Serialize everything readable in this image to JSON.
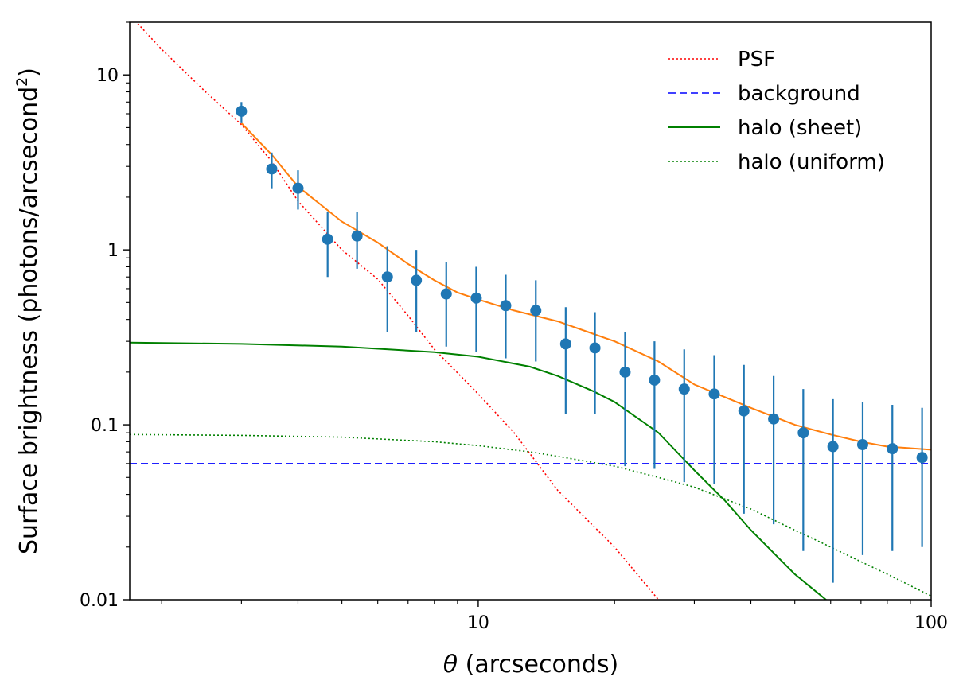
{
  "chart_data": {
    "type": "line",
    "xlabel_symbol": "θ",
    "xlabel_text": " (arcseconds)",
    "ylabel_text": "Surface brightness (photons/arcsecond",
    "ylabel_sup": "2",
    "ylabel_close": ")",
    "xscale": "log",
    "yscale": "log",
    "xlim": [
      1.7,
      100
    ],
    "ylim": [
      0.01,
      20
    ],
    "xtick_values": [
      10,
      100
    ],
    "xtick_labels": [
      "10",
      "100"
    ],
    "xminor_ticks": [
      2,
      3,
      4,
      5,
      6,
      7,
      8,
      9,
      20,
      30,
      40,
      50,
      60,
      70,
      80,
      90
    ],
    "ytick_values": [
      0.01,
      0.1,
      1,
      10
    ],
    "ytick_labels": [
      "0.01",
      "0.1",
      "1",
      "10"
    ],
    "grid": false,
    "legend_position": "top-right",
    "series": [
      {
        "name": "PSF",
        "color": "#ff0000",
        "style": "dotted",
        "x": [
          1.7,
          2,
          2.5,
          3,
          3.5,
          4,
          5,
          6,
          7,
          8,
          10,
          12,
          15,
          20,
          25
        ],
        "y": [
          22,
          14,
          8,
          5.2,
          3.2,
          1.9,
          1.0,
          0.68,
          0.42,
          0.27,
          0.15,
          0.09,
          0.042,
          0.02,
          0.01
        ]
      },
      {
        "name": "background",
        "color": "#0000ff",
        "style": "dashed",
        "x": [
          1.7,
          100
        ],
        "y": [
          0.06,
          0.06
        ]
      },
      {
        "name": "halo (sheet)",
        "color": "#008000",
        "style": "solid",
        "x": [
          1.7,
          3,
          5,
          8,
          10,
          13,
          15,
          18,
          20,
          25,
          30,
          35,
          40,
          50,
          60
        ],
        "y": [
          0.295,
          0.29,
          0.28,
          0.26,
          0.245,
          0.215,
          0.19,
          0.155,
          0.135,
          0.09,
          0.055,
          0.037,
          0.025,
          0.014,
          0.0095
        ]
      },
      {
        "name": "halo (uniform)",
        "color": "#008000",
        "style": "dotted",
        "x": [
          1.7,
          3,
          5,
          8,
          10,
          13,
          15,
          20,
          25,
          30,
          40,
          50,
          60,
          70,
          80,
          100
        ],
        "y": [
          0.088,
          0.087,
          0.085,
          0.08,
          0.076,
          0.07,
          0.066,
          0.058,
          0.05,
          0.044,
          0.033,
          0.025,
          0.02,
          0.0165,
          0.014,
          0.0105
        ]
      },
      {
        "name": "",
        "color": "#ff7f0e",
        "style": "solid",
        "x": [
          3,
          3.5,
          4,
          5,
          6,
          7,
          8,
          9,
          10,
          12,
          15,
          18,
          20,
          25,
          30,
          40,
          50,
          60,
          70,
          80,
          100
        ],
        "y": [
          5.3,
          3.5,
          2.3,
          1.45,
          1.1,
          0.83,
          0.67,
          0.57,
          0.52,
          0.45,
          0.39,
          0.33,
          0.3,
          0.23,
          0.17,
          0.125,
          0.1,
          0.088,
          0.08,
          0.075,
          0.072
        ]
      }
    ],
    "data_points": {
      "color": "#1f77b4",
      "x": [
        3.0,
        3.5,
        4.0,
        4.65,
        5.4,
        6.3,
        7.3,
        8.5,
        9.9,
        11.5,
        13.4,
        15.6,
        18.1,
        21.1,
        24.5,
        28.5,
        33.2,
        38.6,
        44.9,
        52.2,
        60.7,
        70.6,
        82.1,
        95.5
      ],
      "y": [
        6.2,
        2.9,
        2.25,
        1.15,
        1.2,
        0.7,
        0.67,
        0.56,
        0.53,
        0.48,
        0.45,
        0.29,
        0.275,
        0.2,
        0.18,
        0.16,
        0.15,
        0.12,
        0.108,
        0.09,
        0.075,
        0.077,
        0.073,
        0.065
      ],
      "y_low": [
        5.3,
        2.25,
        1.7,
        0.7,
        0.78,
        0.34,
        0.34,
        0.28,
        0.26,
        0.24,
        0.23,
        0.115,
        0.115,
        0.058,
        0.056,
        0.047,
        0.046,
        0.031,
        0.027,
        0.019,
        0.0125,
        0.018,
        0.019,
        0.02
      ],
      "y_high": [
        7.0,
        3.6,
        2.85,
        1.65,
        1.65,
        1.05,
        1.0,
        0.85,
        0.8,
        0.72,
        0.67,
        0.47,
        0.44,
        0.34,
        0.3,
        0.27,
        0.25,
        0.22,
        0.19,
        0.16,
        0.14,
        0.135,
        0.13,
        0.125
      ]
    }
  }
}
